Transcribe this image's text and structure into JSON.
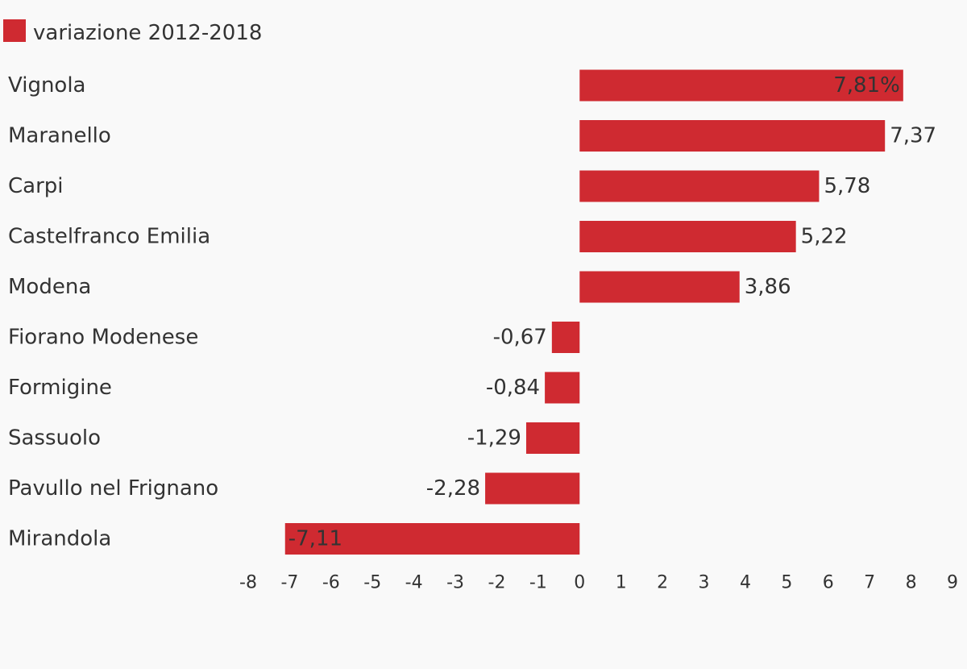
{
  "colors": {
    "bar": "#cf2a31",
    "text": "#333333",
    "background": "#f9f9f9"
  },
  "chart_data": {
    "type": "bar",
    "orientation": "horizontal",
    "legend": {
      "position": "top-left",
      "entries": [
        "variazione 2012-2018"
      ]
    },
    "categories": [
      "Vignola",
      "Maranello",
      "Carpi",
      "Castelfranco Emilia",
      "Modena",
      "Fiorano Modenese",
      "Formigine",
      "Sassuolo",
      "Pavullo nel Frignano",
      "Mirandola"
    ],
    "series": [
      {
        "name": "variazione 2012-2018",
        "values": [
          7.81,
          7.37,
          5.78,
          5.22,
          3.86,
          -0.67,
          -0.84,
          -1.29,
          -2.28,
          -7.11
        ]
      }
    ],
    "data_labels": [
      "7,81%",
      "7,37",
      "5,78",
      "5,22",
      "3,86",
      "-0,67",
      "-0,84",
      "-1,29",
      "-2,28",
      "-7,11"
    ],
    "xlim": [
      -8,
      9
    ],
    "x_ticks": [
      "-8",
      "-7",
      "-6",
      "-5",
      "-4",
      "-3",
      "-2",
      "-1",
      "0",
      "1",
      "2",
      "3",
      "4",
      "5",
      "6",
      "7",
      "8",
      "9"
    ],
    "grid": false
  }
}
